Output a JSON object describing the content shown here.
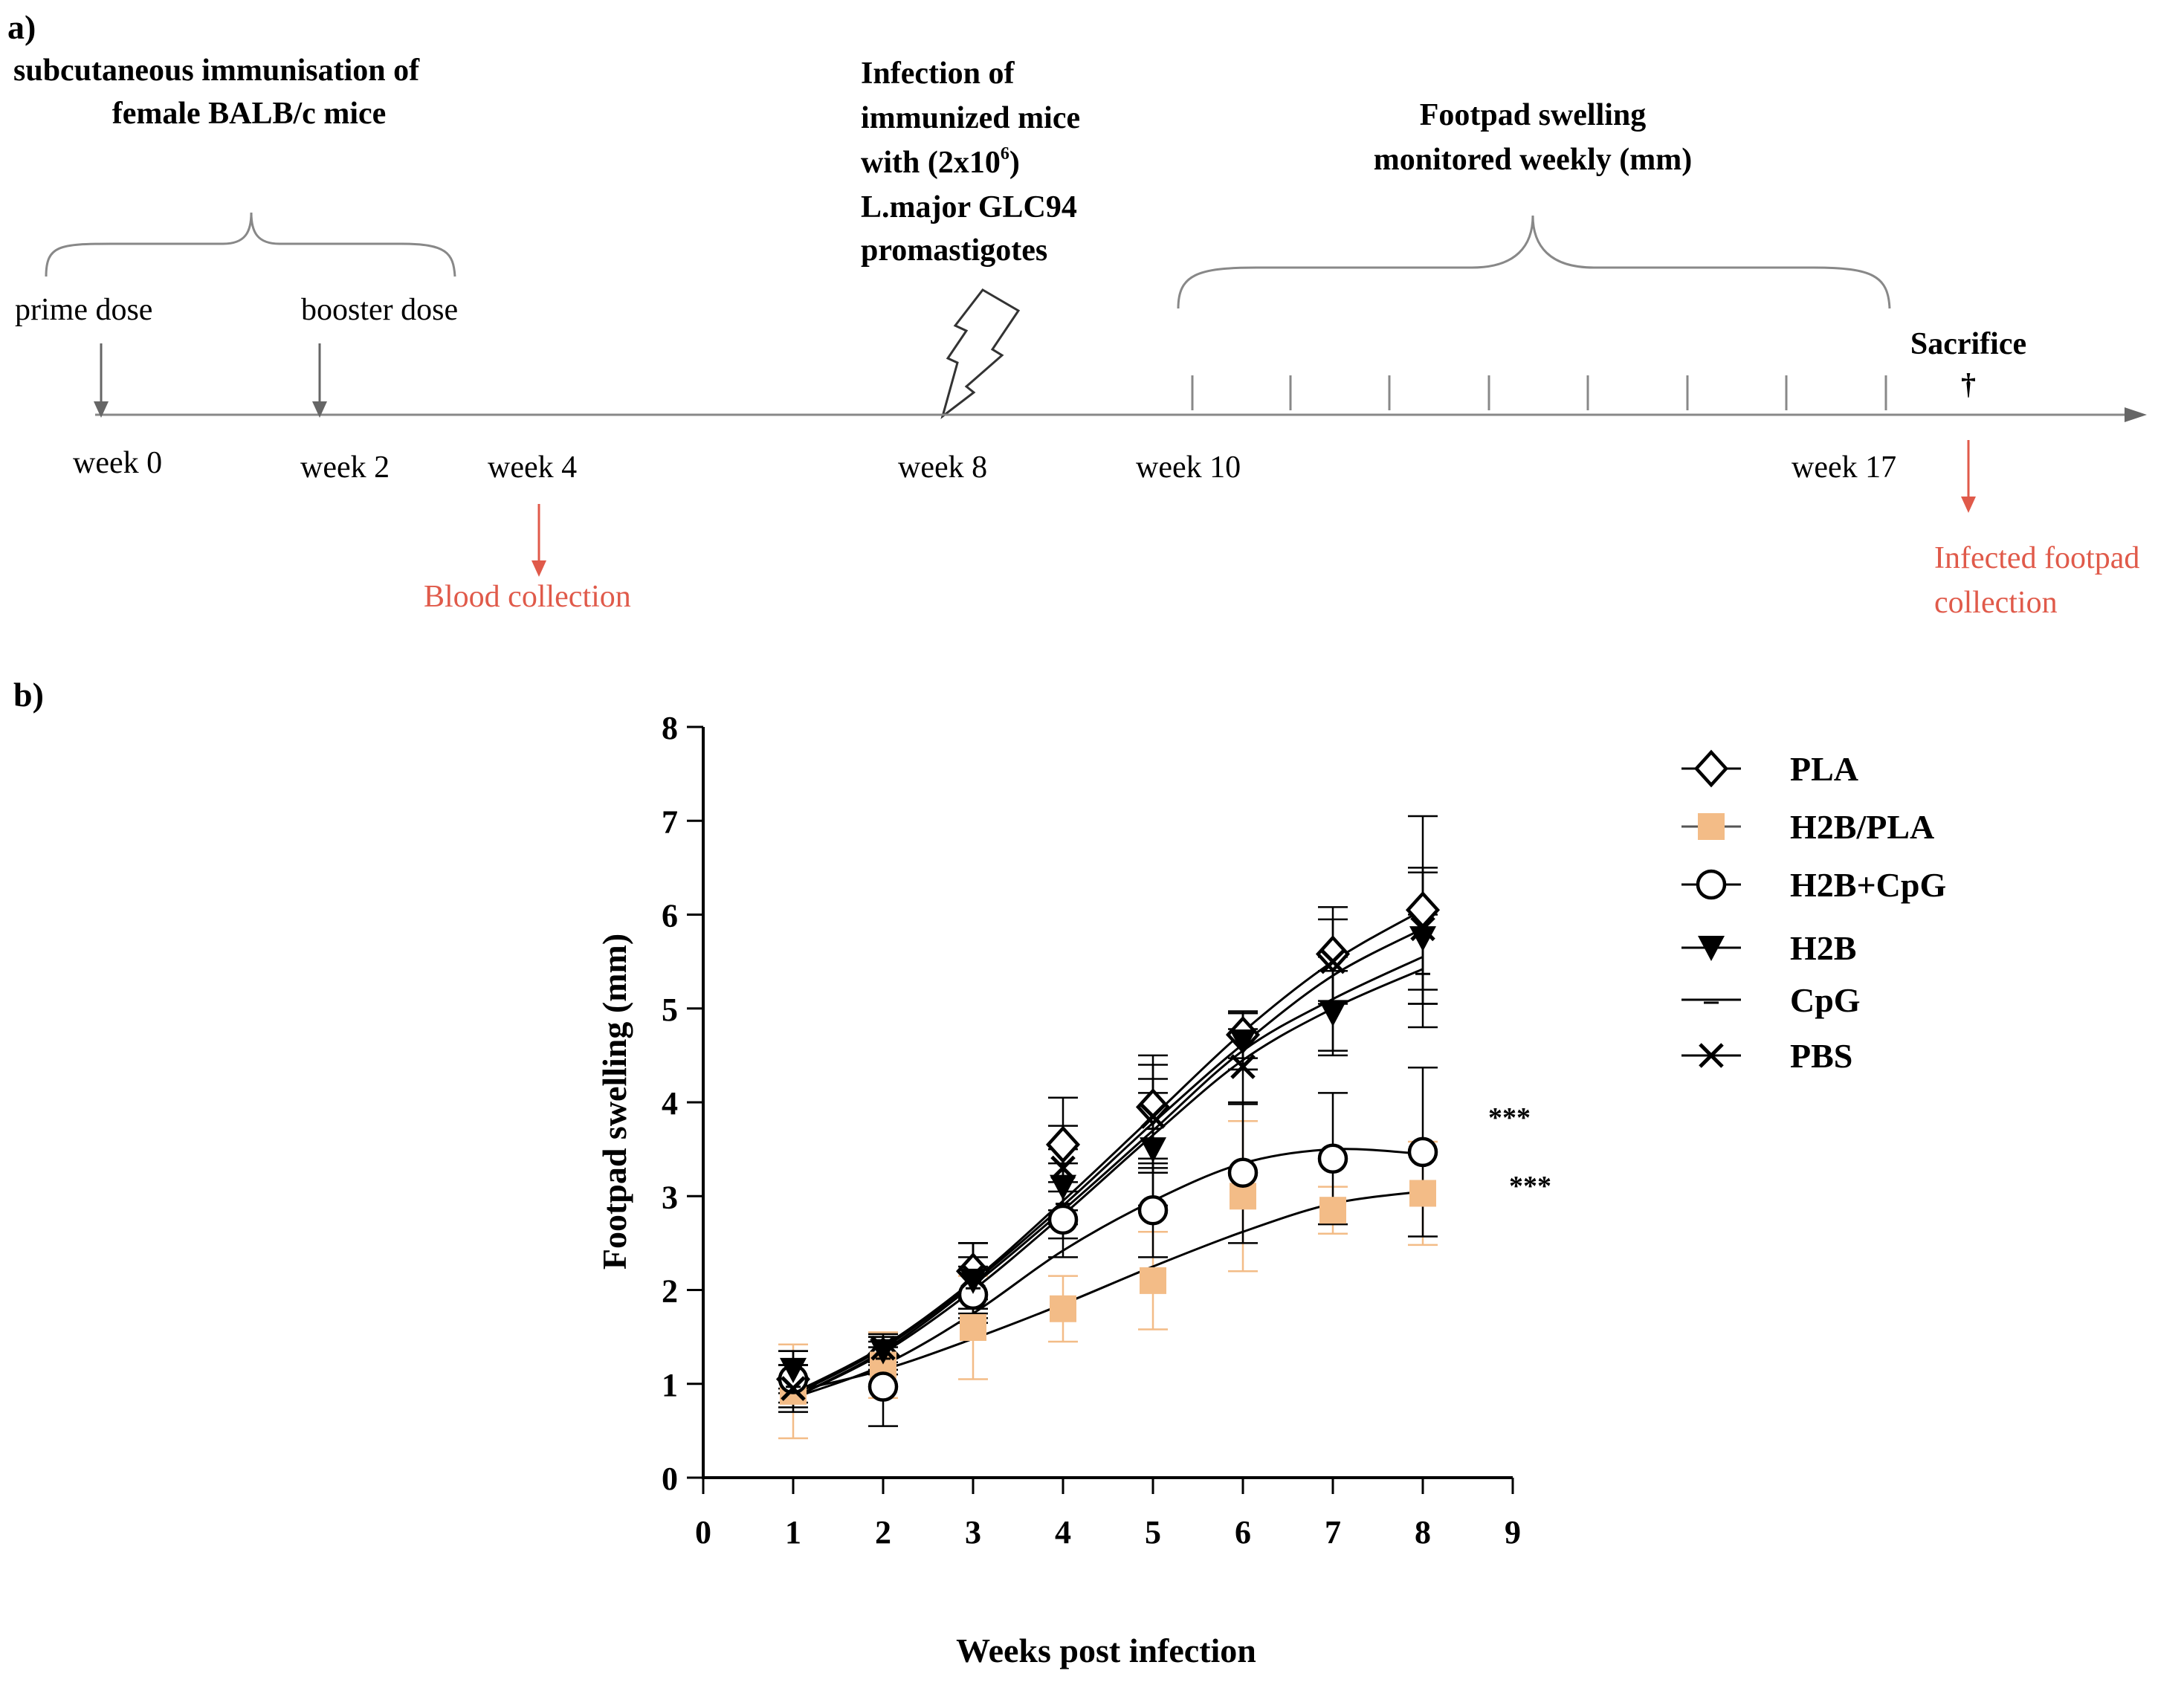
{
  "panel_a": {
    "label": "a)",
    "immunisation_title_line1": "subcutaneous immunisation of",
    "immunisation_title_line2": "female BALB/c mice",
    "prime_dose": "prime dose",
    "booster_dose": "booster dose",
    "infection_line1": "Infection of",
    "infection_line2": "immunized mice",
    "infection_line3_pre": "with  (2x10",
    "infection_line3_sup": "6",
    "infection_line3_post": ")",
    "infection_line4": "L.major GLC94",
    "infection_line5": "promastigotes",
    "footpad_line1": "Footpad swelling",
    "footpad_line2": "monitored weekly (mm)",
    "sacrifice": "Sacrifice",
    "cross_symbol": "†",
    "weeks": [
      "week 0",
      "week 2",
      "week 4",
      "week 8",
      "week 10",
      "week 17"
    ],
    "blood_collection": "Blood collection",
    "infected_line1": "Infected footpad",
    "infected_line2": "collection",
    "highlight_color": "#e05a4a"
  },
  "panel_b": {
    "label": "b)"
  },
  "chart_data": {
    "type": "line",
    "xlabel": "Weeks post infection",
    "ylabel": "Footpad swelling (mm)",
    "xlim": [
      0,
      9
    ],
    "ylim": [
      0,
      8
    ],
    "x_ticks": [
      0,
      1,
      2,
      3,
      4,
      5,
      6,
      7,
      8,
      9
    ],
    "y_ticks": [
      0,
      1,
      2,
      3,
      4,
      5,
      6,
      7,
      8
    ],
    "x": [
      1,
      2,
      3,
      4,
      5,
      6,
      7,
      8
    ],
    "legend_position": "right",
    "series": [
      {
        "name": "PLA",
        "marker": "diamond-open",
        "color": "#000000",
        "values": [
          1.05,
          1.3,
          2.2,
          3.55,
          3.95,
          4.72,
          5.58,
          6.05
        ],
        "errors": [
          0.15,
          0.15,
          0.3,
          0.5,
          0.55,
          0.25,
          0.5,
          1.0
        ],
        "fit": [
          0.9,
          1.4,
          2.1,
          2.95,
          3.85,
          4.75,
          5.5,
          6.05
        ]
      },
      {
        "name": "H2B/PLA",
        "marker": "square-filled",
        "color": "#f3bc87",
        "values": [
          0.92,
          1.2,
          1.6,
          1.8,
          2.1,
          3.0,
          2.85,
          3.03
        ],
        "errors": [
          0.5,
          0.35,
          0.55,
          0.35,
          0.52,
          0.8,
          0.25,
          0.55
        ],
        "fit": [
          0.92,
          1.15,
          1.48,
          1.85,
          2.25,
          2.62,
          2.92,
          3.05
        ]
      },
      {
        "name": "H2B+CpG",
        "marker": "circle-open",
        "color": "#000000",
        "values": [
          1.05,
          0.97,
          1.95,
          2.75,
          2.85,
          3.25,
          3.4,
          3.47
        ],
        "errors": [
          0.3,
          0.42,
          0.3,
          0.4,
          0.5,
          0.75,
          0.7,
          0.9
        ],
        "fit": [
          0.85,
          1.2,
          1.75,
          2.42,
          2.95,
          3.35,
          3.5,
          3.45
        ]
      },
      {
        "name": "H2B",
        "marker": "triangle-down-filled",
        "color": "#000000",
        "values": [
          1.15,
          1.35,
          2.1,
          3.1,
          3.5,
          4.65,
          4.95,
          5.75
        ],
        "errors": [
          0.2,
          0.15,
          0.4,
          0.4,
          0.6,
          0.3,
          0.45,
          0.7
        ],
        "fit": [
          0.85,
          1.35,
          2.05,
          2.85,
          3.7,
          4.55,
          5.1,
          5.55
        ]
      },
      {
        "name": "CpG",
        "marker": "dash",
        "color": "#000000",
        "values": [
          1.0,
          1.3,
          2.05,
          2.95,
          3.75,
          4.65,
          5.05,
          5.4
        ],
        "errors": [
          0.2,
          0.2,
          0.3,
          0.4,
          0.5,
          0.3,
          0.5,
          0.6
        ],
        "fit": [
          0.85,
          1.33,
          2.0,
          2.8,
          3.65,
          4.45,
          5.0,
          5.42
        ]
      },
      {
        "name": "PBS",
        "marker": "x",
        "color": "#000000",
        "values": [
          0.95,
          1.38,
          2.15,
          3.3,
          3.85,
          4.38,
          5.5,
          5.85
        ],
        "errors": [
          0.25,
          0.15,
          0.35,
          0.45,
          0.55,
          0.4,
          0.45,
          0.65
        ],
        "fit": [
          0.88,
          1.38,
          2.08,
          2.9,
          3.78,
          4.62,
          5.35,
          5.85
        ]
      }
    ],
    "annotations": [
      "***",
      "***"
    ]
  }
}
